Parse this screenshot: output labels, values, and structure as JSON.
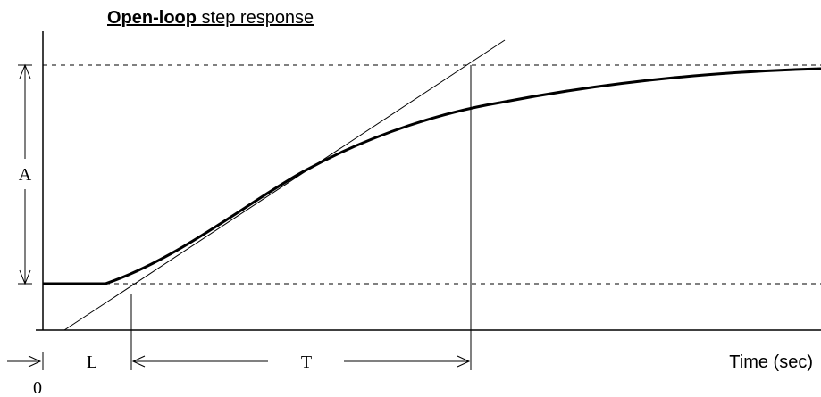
{
  "title": {
    "bold": "Open-loop",
    "rest": "step response"
  },
  "labels": {
    "amplitude": "A",
    "delay": "L",
    "time_constant": "T",
    "origin": "0",
    "x_axis": "Time (sec)"
  }
}
